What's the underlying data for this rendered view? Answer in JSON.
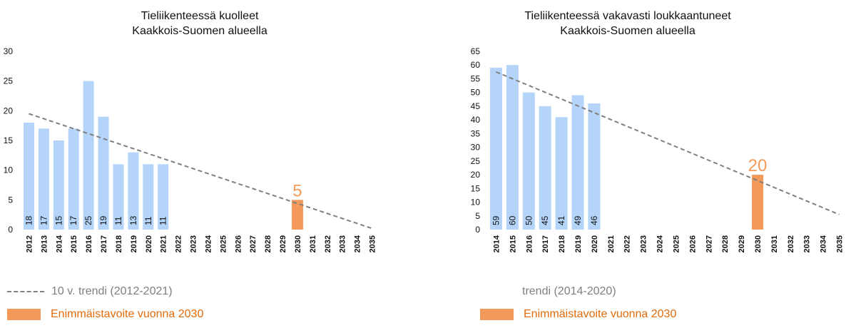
{
  "colors": {
    "bar": "#b4d4f9",
    "target": "#f39a5a",
    "trend": "#808080",
    "target_text": "#e26b0a"
  },
  "chart_data": [
    {
      "type": "bar",
      "title": "Tieliikenteessä kuolleet Kaakkois-Suomen alueella",
      "title_lines": [
        "Tieliikenteessä kuolleet",
        "Kaakkois-Suomen alueella"
      ],
      "categories": [
        "2012",
        "2013",
        "2014",
        "2015",
        "2016",
        "2017",
        "2018",
        "2019",
        "2020",
        "2021",
        "2022",
        "2023",
        "2024",
        "2025",
        "2026",
        "2027",
        "2028",
        "2029",
        "2030",
        "2031",
        "2032",
        "2033",
        "2034",
        "2035"
      ],
      "series": [
        {
          "values": [
            18,
            17,
            15,
            17,
            25,
            19,
            11,
            13,
            11,
            11,
            null,
            null,
            null,
            null,
            null,
            null,
            null,
            null,
            null,
            null,
            null,
            null,
            null,
            null
          ]
        },
        {
          "name": "Enimmäistavoite vuonna 2030",
          "values": [
            null,
            null,
            null,
            null,
            null,
            null,
            null,
            null,
            null,
            null,
            null,
            null,
            null,
            null,
            null,
            null,
            null,
            null,
            5,
            null,
            null,
            null,
            null,
            null
          ]
        }
      ],
      "data_labels": [
        "18",
        "17",
        "15",
        "17",
        "25",
        "19",
        "11",
        "13",
        "11",
        "11"
      ],
      "target_label": "5",
      "trend": {
        "name": "10 v. trendi (2012-2021)",
        "start": [
          "2012",
          19.5
        ],
        "end": [
          "2035",
          0.2
        ]
      },
      "yticks": [
        0,
        5,
        10,
        15,
        20,
        25,
        30
      ],
      "ylim": [
        0,
        30
      ],
      "grid": false,
      "legend": [
        "10 v. trendi (2012-2021)",
        "Enimmäistavoite vuonna 2030"
      ]
    },
    {
      "type": "bar",
      "title": "Tieliikenteessä vakavasti loukkaantuneet Kaakkois-Suomen alueella",
      "title_lines": [
        "Tieliikenteessä vakavasti loukkaantuneet",
        "Kaakkois-Suomen alueella"
      ],
      "categories": [
        "2014",
        "2015",
        "2016",
        "2017",
        "2018",
        "2019",
        "2020",
        "2021",
        "2022",
        "2023",
        "2024",
        "2025",
        "2026",
        "2027",
        "2028",
        "2029",
        "2030",
        "2031",
        "2032",
        "2033",
        "2034",
        "2035"
      ],
      "series": [
        {
          "values": [
            59,
            60,
            50,
            45,
            41,
            49,
            46,
            null,
            null,
            null,
            null,
            null,
            null,
            null,
            null,
            null,
            null,
            null,
            null,
            null,
            null,
            null
          ]
        },
        {
          "name": "Enimmäistavoite vuonna 2030",
          "values": [
            null,
            null,
            null,
            null,
            null,
            null,
            null,
            null,
            null,
            null,
            null,
            null,
            null,
            null,
            null,
            null,
            20,
            null,
            null,
            null,
            null,
            null
          ]
        }
      ],
      "data_labels": [
        "59",
        "60",
        "50",
        "45",
        "41",
        "49",
        "46"
      ],
      "target_label": "20",
      "trend": {
        "name": "trendi (2014-2020)",
        "start": [
          "2014",
          57.5
        ],
        "end": [
          "2035",
          5.5
        ]
      },
      "yticks": [
        0,
        5,
        10,
        15,
        20,
        25,
        30,
        35,
        40,
        45,
        50,
        55,
        60,
        65
      ],
      "ylim": [
        0,
        65
      ],
      "grid": false,
      "legend": [
        "trendi (2014-2020)",
        "Enimmäistavoite vuonna 2030"
      ]
    }
  ]
}
